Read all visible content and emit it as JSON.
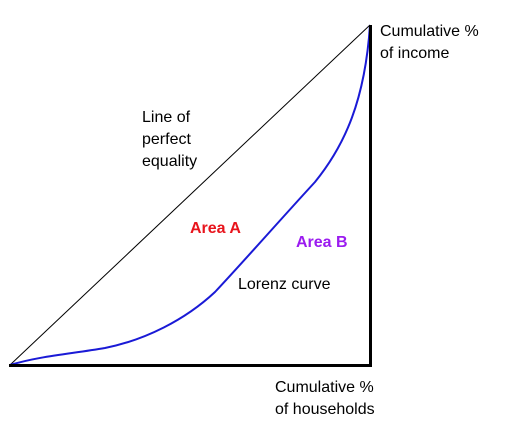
{
  "labels": {
    "y_axis": [
      "Cumulative %",
      "of income"
    ],
    "x_axis": [
      "Cumulative %",
      "of households"
    ],
    "equality_line": [
      "Line of",
      "perfect",
      "equality"
    ],
    "area_a": "Area A",
    "area_b": "Area B",
    "lorenz_curve": "Lorenz curve"
  }
}
